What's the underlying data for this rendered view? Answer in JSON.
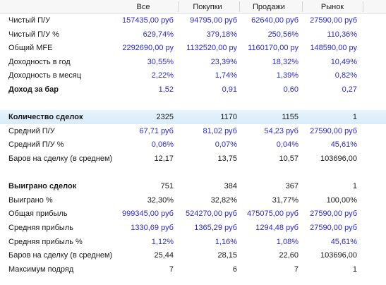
{
  "header": {
    "columns": [
      "Все",
      "Покупки",
      "Продажи",
      "Рынок"
    ]
  },
  "rows": [
    {
      "label": "Чистый П/У",
      "values": [
        "157435,00 руб",
        "94795,00 руб",
        "62640,00 руб",
        "27590,00 руб"
      ],
      "blue": true
    },
    {
      "label": "Чистый П/У %",
      "values": [
        "629,74%",
        "379,18%",
        "250,56%",
        "110,36%"
      ],
      "blue": true
    },
    {
      "label": "Общий MFE",
      "values": [
        "2292690,00 ру",
        "1132520,00 ру",
        "1160170,00 ру",
        "148590,00 ру"
      ],
      "blue": true
    },
    {
      "label": "Доходность в год",
      "values": [
        "30,55%",
        "23,39%",
        "18,32%",
        "10,49%"
      ],
      "blue": true
    },
    {
      "label": "Доходность в месяц",
      "values": [
        "2,22%",
        "1,74%",
        "1,39%",
        "0,82%"
      ],
      "blue": true
    },
    {
      "label": "Доход за бар",
      "values": [
        "1,52",
        "0,91",
        "0,60",
        "0,27"
      ],
      "blue": true,
      "bold_label": true
    },
    {
      "spacer": true
    },
    {
      "label": "Количество сделок",
      "values": [
        "2325",
        "1170",
        "1155",
        "1"
      ],
      "blue": false,
      "bold_label": true,
      "highlight": true
    },
    {
      "label": "Средний П/У",
      "values": [
        "67,71 руб",
        "81,02 руб",
        "54,23 руб",
        "27590,00 руб"
      ],
      "blue": true
    },
    {
      "label": "Средний П/У %",
      "values": [
        "0,06%",
        "0,07%",
        "0,04%",
        "45,61%"
      ],
      "blue": true
    },
    {
      "label": "Баров на сделку (в среднем)",
      "values": [
        "12,17",
        "13,75",
        "10,57",
        "103696,00"
      ],
      "blue": false
    },
    {
      "spacer": true
    },
    {
      "label": "Выиграно сделок",
      "values": [
        "751",
        "384",
        "367",
        "1"
      ],
      "blue": false,
      "bold_label": true
    },
    {
      "label": "Выиграно %",
      "values": [
        "32,30%",
        "32,82%",
        "31,77%",
        "100,00%"
      ],
      "blue": false
    },
    {
      "label": "Общая прибыль",
      "values": [
        "999345,00 руб",
        "524270,00 руб",
        "475075,00 руб",
        "27590,00 руб"
      ],
      "blue": true
    },
    {
      "label": "Средняя прибыль",
      "values": [
        "1330,69 руб",
        "1365,29 руб",
        "1294,48 руб",
        "27590,00 руб"
      ],
      "blue": true
    },
    {
      "label": "Средняя прибыль %",
      "values": [
        "1,12%",
        "1,16%",
        "1,08%",
        "45,61%"
      ],
      "blue": true
    },
    {
      "label": "Баров на сделку (в среднем)",
      "values": [
        "25,44",
        "28,15",
        "22,60",
        "103696,00"
      ],
      "blue": false
    },
    {
      "label": "Максимум подряд",
      "values": [
        "7",
        "6",
        "7",
        "1"
      ],
      "blue": false
    }
  ]
}
